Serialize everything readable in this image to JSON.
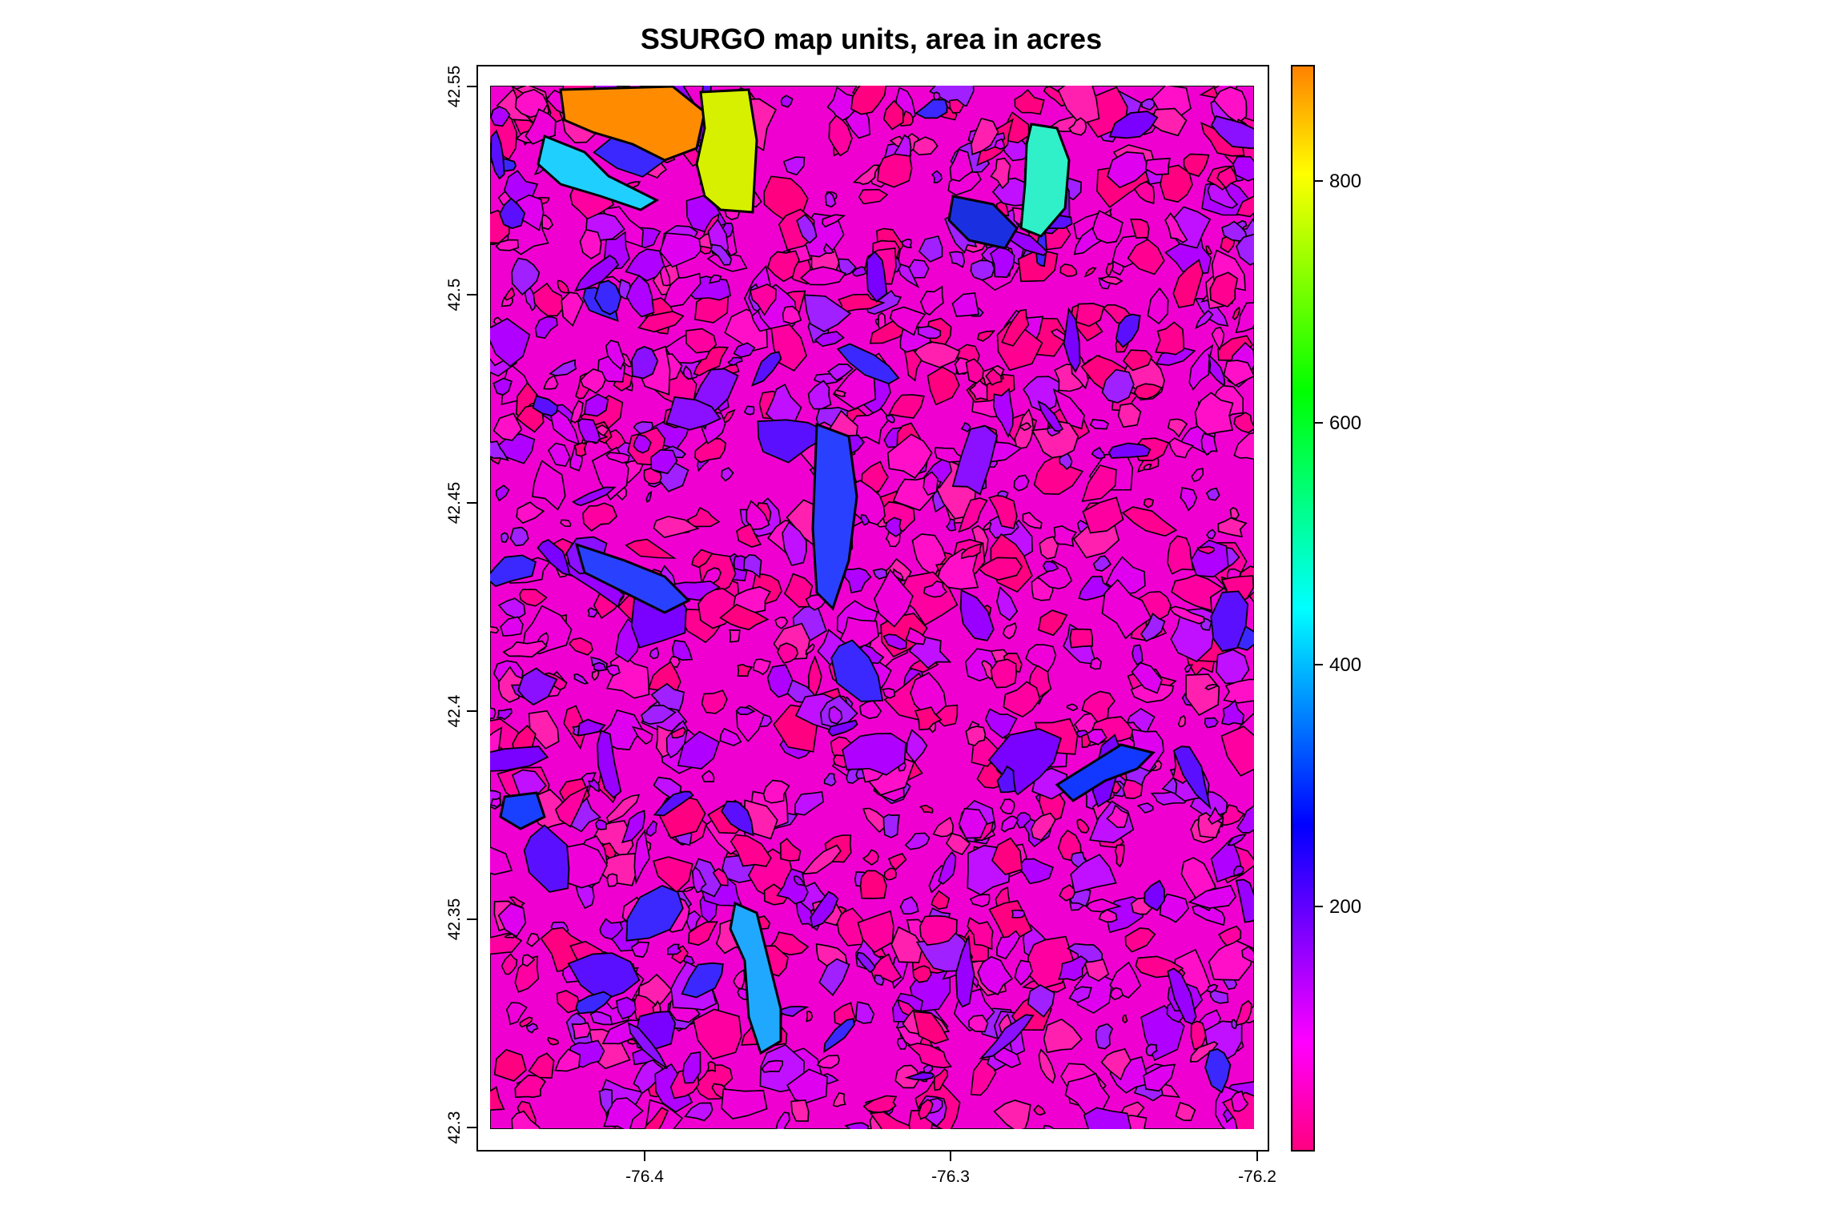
{
  "map": {
    "title": "SSURGO map units, area in acres",
    "x_axis": {
      "ticks": [
        "-76.4",
        "-76.3",
        "-76.2"
      ],
      "range": [
        -76.45,
        -76.2
      ],
      "values": [
        -76.4,
        -76.3,
        -76.2
      ]
    },
    "y_axis": {
      "ticks": [
        "42.3",
        "42.35",
        "42.4",
        "42.45",
        "42.5",
        "42.55"
      ],
      "range": [
        42.3,
        42.55
      ],
      "values": [
        42.3,
        42.35,
        42.4,
        42.45,
        42.5,
        42.55
      ]
    },
    "colorbar": {
      "ticks": [
        "200",
        "400",
        "600",
        "800"
      ],
      "values": [
        200,
        400,
        600,
        800
      ],
      "range": [
        0,
        890
      ],
      "palette": [
        "#ff0080",
        "#ff00ff",
        "#8000ff",
        "#0000ff",
        "#0080ff",
        "#00ffff",
        "#00ff80",
        "#00ff00",
        "#80ff00",
        "#ffff00",
        "#ff8000"
      ]
    },
    "colors": {
      "base_magenta": "#f000d0",
      "dominant_pink": "#ff0090",
      "outline": "#000000"
    }
  }
}
